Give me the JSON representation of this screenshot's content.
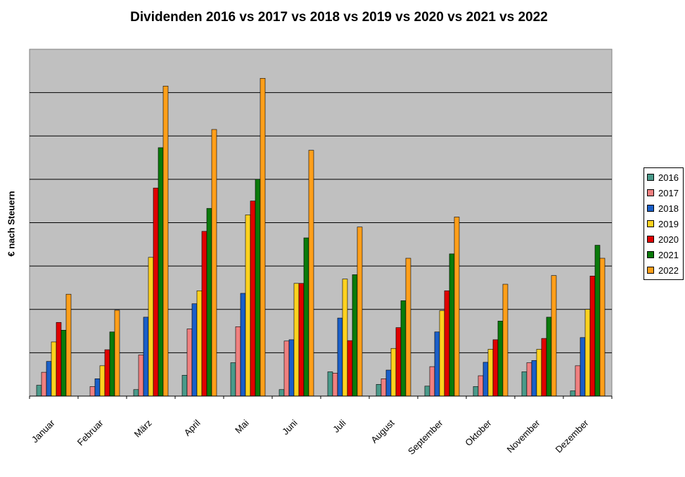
{
  "chart_data": {
    "type": "bar",
    "title": "Dividenden 2016 vs 2017 vs 2018 vs 2019 vs 2020 vs 2021 vs 2022",
    "xlabel": "",
    "ylabel": "€ nach Steuern",
    "ylim": [
      0,
      8
    ],
    "grid": true,
    "legend_position": "right",
    "categories": [
      "Januar",
      "Februar",
      "März",
      "April",
      "Mai",
      "Juni",
      "Juli",
      "August",
      "September",
      "Oktober",
      "November",
      "Dezember"
    ],
    "series": [
      {
        "name": "2016",
        "color": "#4a9a8a",
        "values": [
          0.25,
          0.0,
          0.15,
          0.48,
          0.77,
          0.15,
          0.56,
          0.27,
          0.23,
          0.22,
          0.56,
          0.12
        ]
      },
      {
        "name": "2017",
        "color": "#f08080",
        "values": [
          0.55,
          0.22,
          0.95,
          1.55,
          1.6,
          1.27,
          0.53,
          0.4,
          0.68,
          0.47,
          0.77,
          0.7
        ]
      },
      {
        "name": "2018",
        "color": "#1a5fc8",
        "values": [
          0.8,
          0.4,
          1.82,
          2.13,
          2.37,
          1.3,
          1.8,
          0.6,
          1.48,
          0.78,
          0.82,
          1.35
        ]
      },
      {
        "name": "2019",
        "color": "#ffd21f",
        "values": [
          1.25,
          0.7,
          3.2,
          2.43,
          4.18,
          2.6,
          2.7,
          1.1,
          1.97,
          1.08,
          1.08,
          2.0
        ]
      },
      {
        "name": "2020",
        "color": "#e00000",
        "values": [
          1.7,
          1.07,
          4.8,
          3.8,
          4.5,
          2.6,
          1.28,
          1.58,
          2.43,
          1.3,
          1.33,
          2.77
        ]
      },
      {
        "name": "2021",
        "color": "#0a7a0a",
        "values": [
          1.52,
          1.48,
          5.73,
          4.33,
          5.0,
          3.65,
          2.8,
          2.2,
          3.28,
          1.73,
          1.82,
          3.48
        ]
      },
      {
        "name": "2022",
        "color": "#ff9f1a",
        "values": [
          2.35,
          1.98,
          7.15,
          6.15,
          7.33,
          5.67,
          3.9,
          3.18,
          4.13,
          2.58,
          2.78,
          3.18
        ]
      }
    ]
  }
}
